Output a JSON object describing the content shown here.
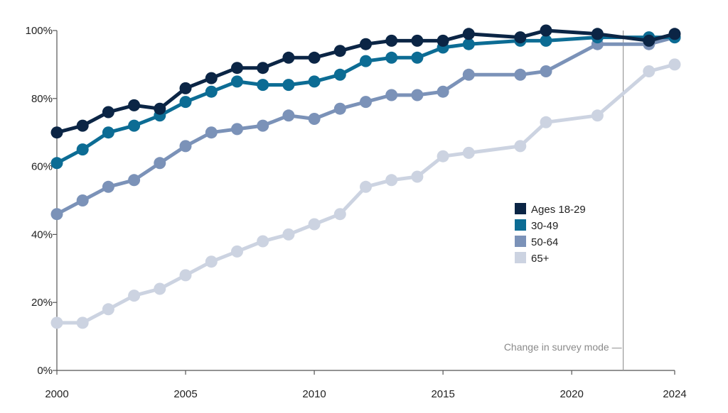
{
  "chart_data": {
    "type": "line",
    "title": "",
    "xlabel": "",
    "ylabel": "",
    "xlim": [
      2000,
      2024
    ],
    "ylim": [
      0,
      100
    ],
    "x_ticks": [
      2000,
      2005,
      2010,
      2015,
      2020,
      2024
    ],
    "x_tick_labels": [
      "2000",
      "2005",
      "2010",
      "2015",
      "2020",
      "2024"
    ],
    "y_ticks": [
      0,
      20,
      40,
      60,
      80,
      100
    ],
    "y_tick_labels": [
      "0%",
      "20%",
      "40%",
      "60%",
      "80%",
      "100%"
    ],
    "legend_position": "center-right",
    "series": [
      {
        "name": "Ages 18-29",
        "color": "#0b2545",
        "points": [
          [
            2000,
            70
          ],
          [
            2001,
            72
          ],
          [
            2002,
            76
          ],
          [
            2003,
            78
          ],
          [
            2004,
            77
          ],
          [
            2005,
            83
          ],
          [
            2006,
            86
          ],
          [
            2007,
            89
          ],
          [
            2008,
            89
          ],
          [
            2009,
            92
          ],
          [
            2010,
            92
          ],
          [
            2011,
            94
          ],
          [
            2012,
            96
          ],
          [
            2013,
            97
          ],
          [
            2014,
            97
          ],
          [
            2015,
            97
          ],
          [
            2016,
            99
          ],
          [
            2018,
            98
          ],
          [
            2019,
            100
          ],
          [
            2021,
            99
          ],
          [
            2023,
            97
          ],
          [
            2024,
            99
          ]
        ]
      },
      {
        "name": "30-49",
        "color": "#0c6c94",
        "points": [
          [
            2000,
            61
          ],
          [
            2001,
            65
          ],
          [
            2002,
            70
          ],
          [
            2003,
            72
          ],
          [
            2004,
            75
          ],
          [
            2005,
            79
          ],
          [
            2006,
            82
          ],
          [
            2007,
            85
          ],
          [
            2008,
            84
          ],
          [
            2009,
            84
          ],
          [
            2010,
            85
          ],
          [
            2011,
            87
          ],
          [
            2012,
            91
          ],
          [
            2013,
            92
          ],
          [
            2014,
            92
          ],
          [
            2015,
            95
          ],
          [
            2016,
            96
          ],
          [
            2018,
            97
          ],
          [
            2019,
            97
          ],
          [
            2021,
            98
          ],
          [
            2023,
            98
          ],
          [
            2024,
            98
          ]
        ]
      },
      {
        "name": "50-64",
        "color": "#7b92b8",
        "points": [
          [
            2000,
            46
          ],
          [
            2001,
            50
          ],
          [
            2002,
            54
          ],
          [
            2003,
            56
          ],
          [
            2004,
            61
          ],
          [
            2005,
            66
          ],
          [
            2006,
            70
          ],
          [
            2007,
            71
          ],
          [
            2008,
            72
          ],
          [
            2009,
            75
          ],
          [
            2010,
            74
          ],
          [
            2011,
            77
          ],
          [
            2012,
            79
          ],
          [
            2013,
            81
          ],
          [
            2014,
            81
          ],
          [
            2015,
            82
          ],
          [
            2016,
            87
          ],
          [
            2018,
            87
          ],
          [
            2019,
            88
          ],
          [
            2021,
            96
          ],
          [
            2023,
            96
          ],
          [
            2024,
            98
          ]
        ]
      },
      {
        "name": "65+",
        "color": "#ccd3e1",
        "points": [
          [
            2000,
            14
          ],
          [
            2001,
            14
          ],
          [
            2002,
            18
          ],
          [
            2003,
            22
          ],
          [
            2004,
            24
          ],
          [
            2005,
            28
          ],
          [
            2006,
            32
          ],
          [
            2007,
            35
          ],
          [
            2008,
            38
          ],
          [
            2009,
            40
          ],
          [
            2010,
            43
          ],
          [
            2011,
            46
          ],
          [
            2012,
            54
          ],
          [
            2013,
            56
          ],
          [
            2014,
            57
          ],
          [
            2015,
            63
          ],
          [
            2016,
            64
          ],
          [
            2018,
            66
          ],
          [
            2019,
            73
          ],
          [
            2021,
            75
          ],
          [
            2023,
            88
          ],
          [
            2024,
            90
          ]
        ]
      }
    ],
    "annotations": [
      {
        "text": "Change in survey mode —",
        "x": 2022
      }
    ]
  }
}
